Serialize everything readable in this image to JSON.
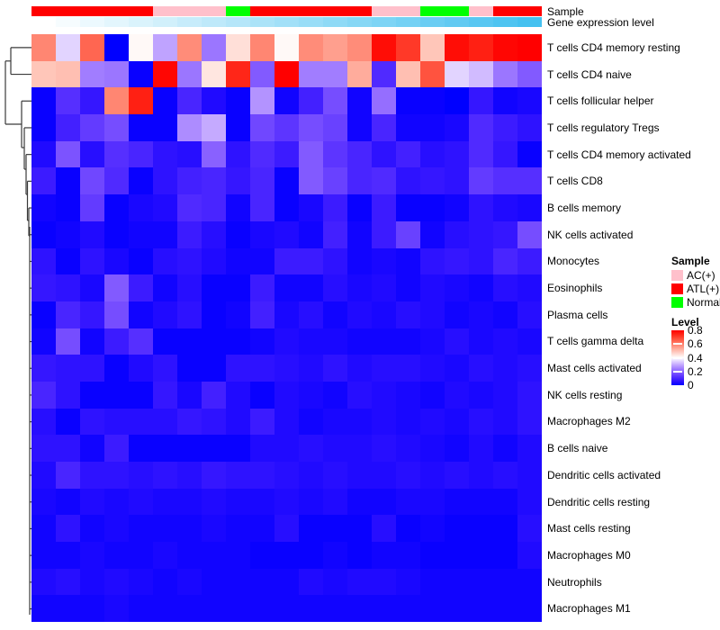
{
  "annotations": {
    "sample_label": "Sample",
    "gene_label": "Gene expression level",
    "sample_by_column": [
      "ATL(+)",
      "ATL(+)",
      "ATL(+)",
      "ATL(+)",
      "ATL(+)",
      "AC(+)",
      "AC(+)",
      "AC(+)",
      "Normal",
      "ATL(+)",
      "ATL(+)",
      "ATL(+)",
      "ATL(+)",
      "ATL(+)",
      "AC(+)",
      "AC(+)",
      "Normal",
      "Normal",
      "AC(+)",
      "ATL(+)",
      "ATL(+)"
    ],
    "sample_colors": {
      "AC(+)": "#FFC0CB",
      "ATL(+)": "#FF0000",
      "Normal": "#00FF00"
    },
    "expression_levels": [
      0,
      0.05,
      0.1,
      0.15,
      0.2,
      0.25,
      0.3,
      0.35,
      0.4,
      0.45,
      0.5,
      0.55,
      0.6,
      0.65,
      0.7,
      0.75,
      0.8,
      0.85,
      0.9,
      0.95,
      1
    ],
    "expression_gradient": {
      "low": "#FFFFFF",
      "high": "#45C1F0"
    }
  },
  "chart_data": {
    "type": "heatmap",
    "title": "",
    "rows": [
      "T cells CD4 memory resting",
      "T cells CD4 naive",
      "T cells follicular helper",
      "T cells regulatory  Tregs",
      "T cells CD4 memory activated",
      "T cells CD8",
      "B cells memory",
      "NK cells activated",
      "Monocytes",
      "Eosinophils",
      "Plasma cells",
      "T cells gamma delta",
      "Mast cells activated",
      "NK cells resting",
      "Macrophages M2",
      "B cells naive",
      "Dendritic cells activated",
      "Dendritic cells resting",
      "Mast cells resting",
      "Macrophages M0",
      "Neutrophils",
      "Macrophages M1"
    ],
    "columns_count": 21,
    "value_range": [
      0,
      0.8
    ],
    "colormap": {
      "low": "#0000FF",
      "mid": "#FFFFFF",
      "high": "#FF0000",
      "midpoint": 0.4
    },
    "values": [
      [
        0.59,
        0.35,
        0.64,
        0.0,
        0.41,
        0.29,
        0.58,
        0.23,
        0.45,
        0.59,
        0.41,
        0.58,
        0.55,
        0.58,
        0.78,
        0.71,
        0.49,
        0.78,
        0.75,
        0.79,
        0.8
      ],
      [
        0.49,
        0.5,
        0.24,
        0.23,
        0.01,
        0.79,
        0.23,
        0.44,
        0.74,
        0.19,
        0.8,
        0.24,
        0.24,
        0.53,
        0.11,
        0.5,
        0.67,
        0.35,
        0.32,
        0.23,
        0.19
      ],
      [
        0.01,
        0.12,
        0.07,
        0.59,
        0.75,
        0.01,
        0.1,
        0.04,
        0.01,
        0.27,
        0.02,
        0.09,
        0.17,
        0.02,
        0.22,
        0.01,
        0.01,
        0.0,
        0.07,
        0.02,
        0.03
      ],
      [
        0.01,
        0.09,
        0.14,
        0.17,
        0.01,
        0.01,
        0.26,
        0.3,
        0.01,
        0.16,
        0.13,
        0.17,
        0.15,
        0.02,
        0.1,
        0.02,
        0.02,
        0.03,
        0.11,
        0.08,
        0.06
      ],
      [
        0.04,
        0.18,
        0.05,
        0.12,
        0.1,
        0.06,
        0.05,
        0.2,
        0.06,
        0.11,
        0.08,
        0.19,
        0.13,
        0.1,
        0.06,
        0.09,
        0.05,
        0.06,
        0.11,
        0.07,
        0.01
      ],
      [
        0.08,
        0.01,
        0.16,
        0.11,
        0.01,
        0.06,
        0.09,
        0.1,
        0.07,
        0.1,
        0.01,
        0.19,
        0.15,
        0.1,
        0.11,
        0.06,
        0.07,
        0.06,
        0.14,
        0.12,
        0.12
      ],
      [
        0.02,
        0.01,
        0.14,
        0.01,
        0.03,
        0.04,
        0.11,
        0.1,
        0.02,
        0.1,
        0.01,
        0.03,
        0.08,
        0.01,
        0.08,
        0.01,
        0.01,
        0.02,
        0.06,
        0.04,
        0.03
      ],
      [
        0.01,
        0.02,
        0.04,
        0.01,
        0.02,
        0.02,
        0.08,
        0.05,
        0.01,
        0.03,
        0.04,
        0.02,
        0.09,
        0.02,
        0.08,
        0.15,
        0.02,
        0.05,
        0.06,
        0.07,
        0.17
      ],
      [
        0.06,
        0.01,
        0.06,
        0.03,
        0.01,
        0.05,
        0.06,
        0.04,
        0.02,
        0.02,
        0.08,
        0.08,
        0.06,
        0.02,
        0.03,
        0.02,
        0.06,
        0.07,
        0.06,
        0.1,
        0.08
      ],
      [
        0.07,
        0.06,
        0.03,
        0.19,
        0.08,
        0.02,
        0.05,
        0.01,
        0.01,
        0.08,
        0.02,
        0.02,
        0.05,
        0.03,
        0.04,
        0.02,
        0.04,
        0.03,
        0.02,
        0.05,
        0.04
      ],
      [
        0.01,
        0.1,
        0.07,
        0.17,
        0.02,
        0.04,
        0.06,
        0.01,
        0.02,
        0.09,
        0.03,
        0.05,
        0.02,
        0.04,
        0.03,
        0.05,
        0.04,
        0.02,
        0.03,
        0.02,
        0.05
      ],
      [
        0.02,
        0.17,
        0.02,
        0.08,
        0.12,
        0.01,
        0.01,
        0.01,
        0.01,
        0.02,
        0.04,
        0.03,
        0.03,
        0.02,
        0.02,
        0.02,
        0.03,
        0.05,
        0.03,
        0.04,
        0.03
      ],
      [
        0.07,
        0.06,
        0.06,
        0.01,
        0.04,
        0.06,
        0.01,
        0.01,
        0.06,
        0.06,
        0.05,
        0.04,
        0.06,
        0.04,
        0.05,
        0.05,
        0.04,
        0.03,
        0.05,
        0.04,
        0.05
      ],
      [
        0.1,
        0.06,
        0.01,
        0.01,
        0.01,
        0.07,
        0.03,
        0.09,
        0.04,
        0.01,
        0.04,
        0.03,
        0.02,
        0.05,
        0.04,
        0.03,
        0.02,
        0.04,
        0.03,
        0.04,
        0.06
      ],
      [
        0.05,
        0.01,
        0.06,
        0.05,
        0.05,
        0.05,
        0.07,
        0.06,
        0.04,
        0.08,
        0.04,
        0.02,
        0.03,
        0.03,
        0.04,
        0.03,
        0.04,
        0.03,
        0.05,
        0.04,
        0.06
      ],
      [
        0.06,
        0.06,
        0.02,
        0.08,
        0.01,
        0.01,
        0.01,
        0.01,
        0.01,
        0.04,
        0.04,
        0.05,
        0.04,
        0.04,
        0.05,
        0.04,
        0.03,
        0.02,
        0.04,
        0.02,
        0.04
      ],
      [
        0.04,
        0.1,
        0.06,
        0.06,
        0.05,
        0.06,
        0.05,
        0.07,
        0.06,
        0.06,
        0.05,
        0.04,
        0.05,
        0.04,
        0.04,
        0.05,
        0.04,
        0.05,
        0.04,
        0.05,
        0.04
      ],
      [
        0.03,
        0.02,
        0.04,
        0.03,
        0.04,
        0.03,
        0.03,
        0.04,
        0.03,
        0.03,
        0.04,
        0.03,
        0.04,
        0.02,
        0.02,
        0.03,
        0.03,
        0.02,
        0.02,
        0.02,
        0.04
      ],
      [
        0.02,
        0.06,
        0.02,
        0.03,
        0.02,
        0.02,
        0.02,
        0.03,
        0.02,
        0.02,
        0.05,
        0.01,
        0.01,
        0.01,
        0.05,
        0.01,
        0.02,
        0.01,
        0.01,
        0.01,
        0.05
      ],
      [
        0.02,
        0.02,
        0.03,
        0.02,
        0.02,
        0.03,
        0.02,
        0.02,
        0.02,
        0.01,
        0.01,
        0.01,
        0.02,
        0.01,
        0.02,
        0.02,
        0.01,
        0.01,
        0.01,
        0.01,
        0.04
      ],
      [
        0.04,
        0.05,
        0.03,
        0.04,
        0.03,
        0.02,
        0.03,
        0.02,
        0.02,
        0.02,
        0.02,
        0.04,
        0.03,
        0.04,
        0.04,
        0.03,
        0.02,
        0.02,
        0.02,
        0.02,
        0.02
      ],
      [
        0.02,
        0.02,
        0.02,
        0.03,
        0.02,
        0.02,
        0.02,
        0.02,
        0.02,
        0.02,
        0.02,
        0.02,
        0.02,
        0.02,
        0.02,
        0.02,
        0.02,
        0.02,
        0.02,
        0.02,
        0.02
      ]
    ]
  },
  "legend": {
    "sample_title": "Sample",
    "sample_items": [
      {
        "label": "AC(+)",
        "color": "#FFC0CB"
      },
      {
        "label": "ATL(+)",
        "color": "#FF0000"
      },
      {
        "label": "Normal",
        "color": "#00FF00"
      }
    ],
    "level_title": "Level",
    "level_ticks": [
      {
        "label": "0.8",
        "value": 0.8
      },
      {
        "label": "0.6",
        "value": 0.6
      },
      {
        "label": "0.4",
        "value": 0.4
      },
      {
        "label": "0.2",
        "value": 0.2
      },
      {
        "label": "0",
        "value": 0.0
      }
    ]
  }
}
